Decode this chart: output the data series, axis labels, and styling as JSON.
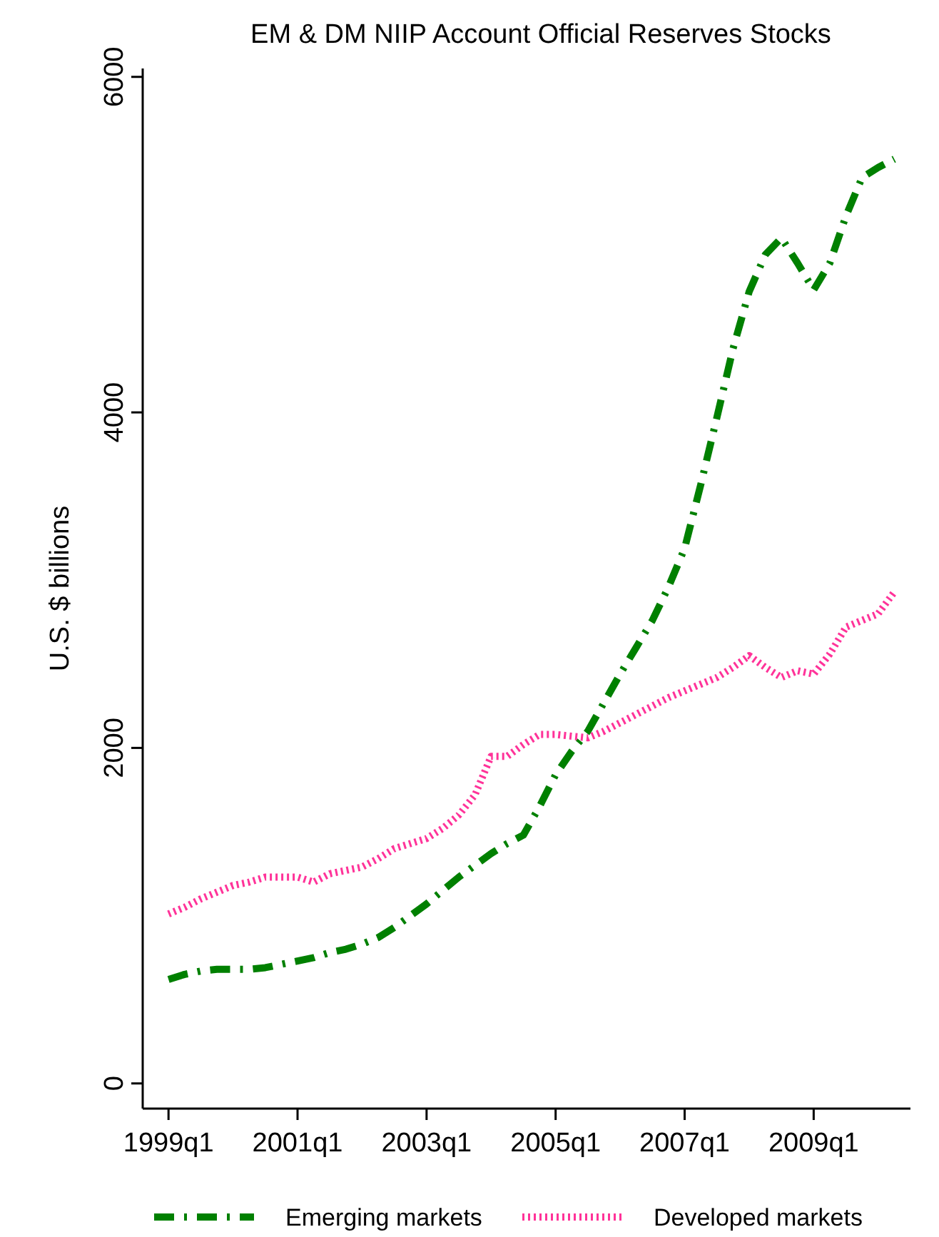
{
  "chart_data": {
    "type": "line",
    "title": "EM & DM NIIP Account Official Reserves Stocks",
    "ylabel": "U.S. $ billions",
    "categories": [
      "1999q1",
      null,
      null,
      null,
      null,
      null,
      null,
      null,
      "2001q1",
      null,
      null,
      null,
      null,
      null,
      null,
      null,
      "2003q1",
      null,
      null,
      null,
      null,
      null,
      null,
      null,
      "2005q1",
      null,
      null,
      null,
      null,
      null,
      null,
      null,
      "2007q1",
      null,
      null,
      null,
      null,
      null,
      null,
      null,
      "2009q1",
      null,
      null,
      null,
      null,
      null
    ],
    "ylim": [
      -150,
      6050
    ],
    "yticks": [
      0,
      2000,
      4000,
      6000
    ],
    "grid": false,
    "legend": "bottom",
    "series": [
      {
        "name": "Emerging markets",
        "color": "#008000",
        "line_style": "dashed",
        "values": [
          620,
          650,
          670,
          680,
          680,
          680,
          690,
          710,
          730,
          750,
          780,
          800,
          830,
          870,
          930,
          1000,
          1070,
          1150,
          1230,
          1300,
          1370,
          1430,
          1480,
          1650,
          1840,
          1980,
          2100,
          2270,
          2440,
          2600,
          2760,
          2960,
          3190,
          3570,
          3970,
          4380,
          4720,
          4940,
          5040,
          4890,
          4730,
          4890,
          5170,
          5400,
          5460,
          5510
        ]
      },
      {
        "name": "Developed markets",
        "color": "#ff3399",
        "line_style": "dotted",
        "values": [
          1010,
          1050,
          1100,
          1140,
          1180,
          1200,
          1230,
          1230,
          1230,
          1200,
          1250,
          1270,
          1290,
          1340,
          1400,
          1430,
          1460,
          1520,
          1600,
          1720,
          1950,
          1950,
          2020,
          2080,
          2080,
          2070,
          2060,
          2100,
          2150,
          2200,
          2250,
          2300,
          2340,
          2380,
          2420,
          2480,
          2550,
          2480,
          2420,
          2460,
          2440,
          2560,
          2720,
          2760,
          2800,
          2930
        ]
      }
    ]
  }
}
